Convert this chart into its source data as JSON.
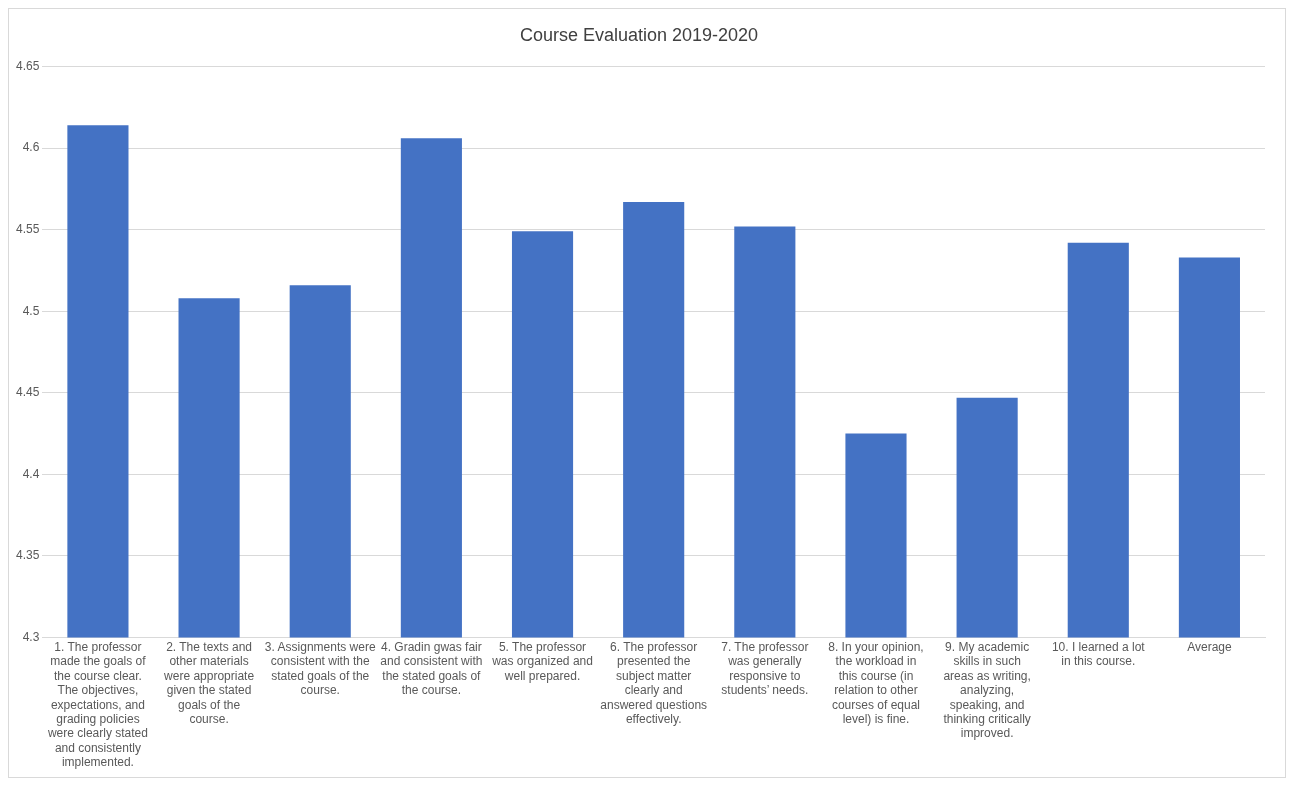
{
  "chart_data": {
    "type": "bar",
    "title": "Course Evaluation 2019-2020",
    "categories": [
      "1. The professor made the goals of the course clear. The objectives, expectations, and grading policies were clearly stated and consistently implemented.",
      "2. The texts and other materials were appropriate given the stated goals of the course.",
      "3. Assignments were consistent with the stated goals of the course.",
      "4. Gradin gwas fair and consistent with the stated goals of the course.",
      "5. The professor was organized and well prepared.",
      "6. The professor presented the subject matter clearly and answered questions effectively.",
      "7. The professor was generally responsive to students’ needs.",
      "8. In your opinion, the workload in this course (in relation to other courses of equal level) is fine.",
      "9. My academic skills in such areas as writing, analyzing, speaking, and thinking critically improved.",
      "10. I learned a lot in this course.",
      "Average"
    ],
    "values": [
      4.614,
      4.508,
      4.516,
      4.606,
      4.549,
      4.567,
      4.552,
      4.425,
      4.447,
      4.542,
      4.533
    ],
    "color": "#4472c4",
    "ylim": [
      4.3,
      4.65
    ],
    "yticks": [
      4.3,
      4.35,
      4.4,
      4.45,
      4.5,
      4.55,
      4.6,
      4.65
    ],
    "grid": "y",
    "legend": false
  }
}
